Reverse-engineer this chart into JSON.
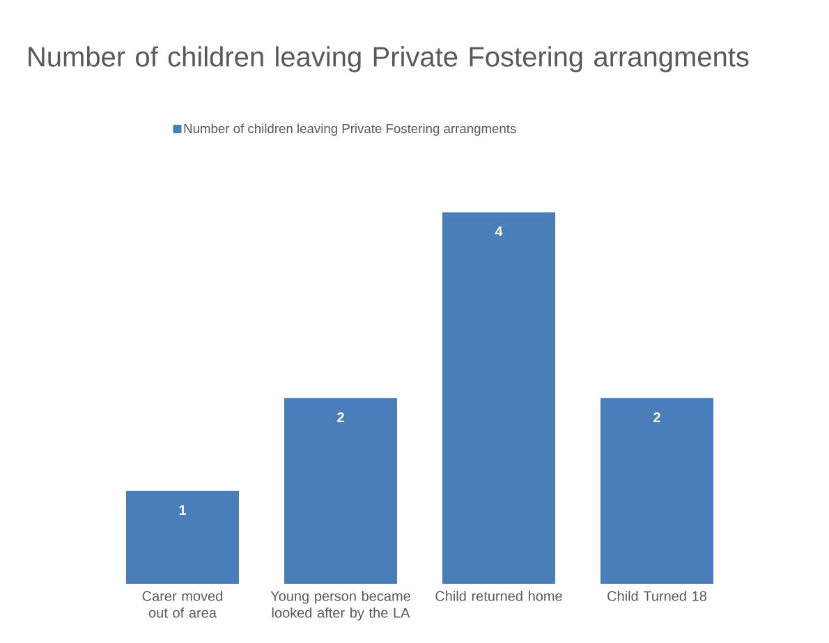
{
  "chart_data": {
    "type": "bar",
    "title": "Number of children leaving Private Fostering arrangments",
    "categories": [
      "Carer moved out of area",
      "Young person became looked after by the LA",
      "Child returned home",
      "Child Turned 18"
    ],
    "series": [
      {
        "name": "Number of children leaving Private Fostering arrangments",
        "color": "#4a7ebb",
        "values": [
          1,
          2,
          4,
          2
        ]
      }
    ],
    "data_labels": true,
    "legend": "top"
  }
}
